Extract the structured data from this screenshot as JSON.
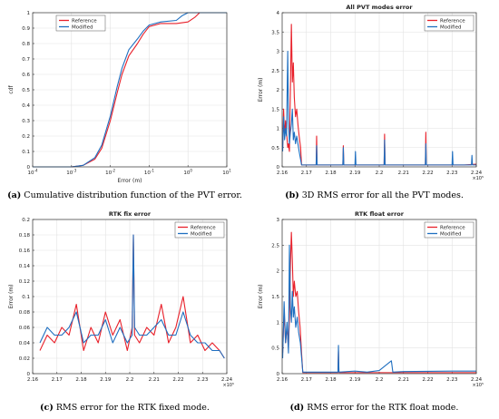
{
  "colors": {
    "reference": "#e8202a",
    "modified": "#1f6fc0"
  },
  "captions": [
    {
      "label": "(a)",
      "text": " Cumulative distribution function of the PVT error."
    },
    {
      "label": "(b)",
      "text": " 3D RMS error for all the PVT modes."
    },
    {
      "label": "(c)",
      "text": " RMS error for the RTK fixed mode."
    },
    {
      "label": "(d)",
      "text": " RMS error for the RTK float mode."
    }
  ],
  "chart_data": [
    {
      "type": "line",
      "title": "",
      "xlabel": "Error (m)",
      "ylabel": "cdf",
      "xscale": "log",
      "xlim": [
        0.0001,
        10
      ],
      "ylim": [
        0,
        1
      ],
      "xticks": [
        "10-4",
        "10-3",
        "10-2",
        "10-1",
        "100",
        "101"
      ],
      "yticks": [
        "0",
        "0.1",
        "0.2",
        "0.3",
        "0.4",
        "0.5",
        "0.6",
        "0.7",
        "0.8",
        "0.9",
        "1"
      ],
      "grid": true,
      "legend_position": "top-left",
      "series": [
        {
          "name": "Reference",
          "x": [
            0.0001,
            0.001,
            0.002,
            0.004,
            0.006,
            0.01,
            0.015,
            0.02,
            0.03,
            0.05,
            0.07,
            0.1,
            0.2,
            0.5,
            1.0,
            1.5,
            2.0,
            3.0,
            10
          ],
          "y": [
            0,
            0,
            0.01,
            0.05,
            0.12,
            0.3,
            0.48,
            0.6,
            0.72,
            0.8,
            0.86,
            0.91,
            0.93,
            0.93,
            0.94,
            0.97,
            1.0,
            1.0,
            1.0
          ]
        },
        {
          "name": "Modified",
          "x": [
            0.0001,
            0.001,
            0.002,
            0.004,
            0.006,
            0.01,
            0.015,
            0.02,
            0.03,
            0.05,
            0.07,
            0.1,
            0.2,
            0.5,
            0.7,
            1.0,
            2.0,
            10
          ],
          "y": [
            0,
            0,
            0.01,
            0.06,
            0.14,
            0.33,
            0.52,
            0.64,
            0.76,
            0.83,
            0.88,
            0.92,
            0.94,
            0.95,
            0.98,
            1.0,
            1.0,
            1.0
          ]
        }
      ]
    },
    {
      "type": "line",
      "title": "All PVT modes error",
      "xlabel": "",
      "ylabel": "Error (m)",
      "xlim": [
        216000,
        224000
      ],
      "ylim": [
        0,
        4
      ],
      "xticks": [
        "2.16",
        "2.17",
        "2.18",
        "2.19",
        "2.2",
        "2.21",
        "2.22",
        "2.23",
        "2.24"
      ],
      "xtick_values": [
        216000,
        217000,
        218000,
        219000,
        220000,
        221000,
        222000,
        223000,
        224000
      ],
      "yticks": [
        "0",
        "0.5",
        "1",
        "1.5",
        "2",
        "2.5",
        "3",
        "3.5",
        "4"
      ],
      "x_exponent": "×10⁵",
      "grid": true,
      "legend_position": "top-right",
      "series": [
        {
          "name": "Reference",
          "x": [
            216020,
            216060,
            216100,
            216140,
            216180,
            216230,
            216260,
            216300,
            216340,
            216380,
            216420,
            216460,
            216500,
            216550,
            216600,
            216650,
            216700,
            216760,
            216800,
            217000,
            217400,
            217420,
            217440,
            218500,
            218520,
            218540,
            220200,
            220220,
            220240,
            221900,
            221920,
            221940,
            223500,
            224000
          ],
          "y": [
            0.5,
            1.5,
            0.8,
            1.2,
            0.9,
            0.5,
            0.6,
            0.4,
            2.0,
            3.7,
            2.2,
            2.7,
            1.8,
            1.3,
            1.5,
            1.1,
            0.8,
            0.5,
            0.05,
            0.05,
            0.05,
            0.8,
            0.05,
            0.05,
            0.55,
            0.05,
            0.05,
            0.85,
            0.05,
            0.05,
            0.9,
            0.05,
            0.05,
            0.07
          ]
        },
        {
          "name": "Modified",
          "x": [
            216020,
            216060,
            216100,
            216140,
            216180,
            216230,
            216260,
            216300,
            216340,
            216380,
            216420,
            216460,
            216500,
            216550,
            216600,
            216700,
            216800,
            217400,
            217420,
            217440,
            218500,
            218520,
            218540,
            219000,
            219020,
            219040,
            220200,
            220220,
            220240,
            221900,
            221920,
            221940,
            223000,
            223020,
            223040,
            223800,
            223820,
            223840,
            224000
          ],
          "y": [
            0.4,
            1.3,
            0.7,
            1.0,
            0.8,
            3.0,
            1.2,
            0.6,
            0.9,
            1.1,
            1.5,
            0.7,
            0.9,
            0.6,
            0.8,
            0.4,
            0.05,
            0.05,
            0.55,
            0.05,
            0.05,
            0.5,
            0.05,
            0.05,
            0.4,
            0.05,
            0.05,
            0.7,
            0.05,
            0.05,
            0.6,
            0.05,
            0.05,
            0.4,
            0.05,
            0.05,
            0.3,
            0.05,
            0.05
          ]
        }
      ]
    },
    {
      "type": "line",
      "title": "RTK fix error",
      "xlabel": "",
      "ylabel": "Error (m)",
      "xlim": [
        216000,
        224000
      ],
      "ylim": [
        0,
        0.2
      ],
      "xticks": [
        "2.16",
        "2.17",
        "2.18",
        "2.19",
        "2.2",
        "2.21",
        "2.22",
        "2.23",
        "2.24"
      ],
      "xtick_values": [
        216000,
        217000,
        218000,
        219000,
        220000,
        221000,
        222000,
        223000,
        224000
      ],
      "yticks": [
        "0",
        "0.02",
        "0.04",
        "0.06",
        "0.08",
        "0.1",
        "0.12",
        "0.14",
        "0.16",
        "0.18",
        "0.2"
      ],
      "x_exponent": "×10⁵",
      "grid": true,
      "legend_position": "top-right",
      "series": [
        {
          "name": "Reference",
          "x": [
            216300,
            216600,
            216900,
            217200,
            217500,
            217800,
            218100,
            218400,
            218700,
            219000,
            219300,
            219600,
            219900,
            220100,
            220150,
            220200,
            220400,
            220700,
            221000,
            221300,
            221600,
            221900,
            222200,
            222500,
            222800,
            223100,
            223400,
            223700,
            223900
          ],
          "y": [
            0.03,
            0.05,
            0.04,
            0.06,
            0.05,
            0.09,
            0.03,
            0.06,
            0.04,
            0.08,
            0.05,
            0.07,
            0.03,
            0.06,
            0.18,
            0.05,
            0.04,
            0.06,
            0.05,
            0.09,
            0.04,
            0.06,
            0.1,
            0.04,
            0.05,
            0.03,
            0.04,
            0.03,
            0.02
          ]
        },
        {
          "name": "Modified",
          "x": [
            216300,
            216600,
            216900,
            217200,
            217500,
            217800,
            218100,
            218400,
            218700,
            219000,
            219300,
            219600,
            219900,
            220100,
            220150,
            220200,
            220400,
            220700,
            221000,
            221300,
            221600,
            221900,
            222200,
            222500,
            222800,
            223100,
            223400,
            223700,
            223900
          ],
          "y": [
            0.04,
            0.06,
            0.05,
            0.05,
            0.06,
            0.08,
            0.04,
            0.05,
            0.05,
            0.07,
            0.04,
            0.06,
            0.04,
            0.05,
            0.18,
            0.06,
            0.05,
            0.05,
            0.06,
            0.07,
            0.05,
            0.05,
            0.08,
            0.05,
            0.04,
            0.04,
            0.03,
            0.03,
            0.02
          ]
        }
      ]
    },
    {
      "type": "line",
      "title": "RTK float error",
      "xlabel": "",
      "ylabel": "Error (m)",
      "xlim": [
        216000,
        224000
      ],
      "ylim": [
        0,
        3
      ],
      "xticks": [
        "2.16",
        "2.17",
        "2.18",
        "2.19",
        "2.2",
        "2.21",
        "2.22",
        "2.23",
        "2.24"
      ],
      "xtick_values": [
        216000,
        217000,
        218000,
        219000,
        220000,
        221000,
        222000,
        223000,
        224000
      ],
      "yticks": [
        "0",
        "0.5",
        "1",
        "1.5",
        "2",
        "2.5",
        "3"
      ],
      "x_exponent": "×10⁵",
      "grid": true,
      "legend_position": "top-right",
      "series": [
        {
          "name": "Reference",
          "x": [
            216020,
            216080,
            216140,
            216200,
            216260,
            216300,
            216340,
            216380,
            216420,
            216460,
            216500,
            216560,
            216620,
            216680,
            216740,
            216800,
            216850,
            218000,
            218300,
            218320,
            218340,
            219500,
            220400,
            222000,
            224000
          ],
          "y": [
            0.4,
            1.2,
            0.6,
            0.9,
            0.5,
            1.1,
            2.1,
            2.75,
            2.2,
            1.5,
            1.8,
            1.5,
            1.6,
            1.2,
            0.9,
            0.4,
            0.02,
            0.02,
            0.02,
            0.45,
            0.02,
            0.02,
            0.02,
            0.02,
            0.02
          ]
        },
        {
          "name": "Modified",
          "x": [
            216020,
            216080,
            216140,
            216200,
            216260,
            216300,
            216340,
            216380,
            216420,
            216460,
            216500,
            216560,
            216620,
            216680,
            216750,
            216850,
            217500,
            218000,
            218300,
            218320,
            218340,
            219000,
            219500,
            220000,
            220500,
            220560,
            221000,
            223000,
            224000
          ],
          "y": [
            0.3,
            1.4,
            0.6,
            1.0,
            0.4,
            2.5,
            1.3,
            1.0,
            1.6,
            1.1,
            1.3,
            0.9,
            1.1,
            0.8,
            0.6,
            0.03,
            0.03,
            0.03,
            0.03,
            0.55,
            0.03,
            0.05,
            0.03,
            0.06,
            0.25,
            0.03,
            0.04,
            0.05,
            0.05
          ]
        }
      ]
    }
  ]
}
